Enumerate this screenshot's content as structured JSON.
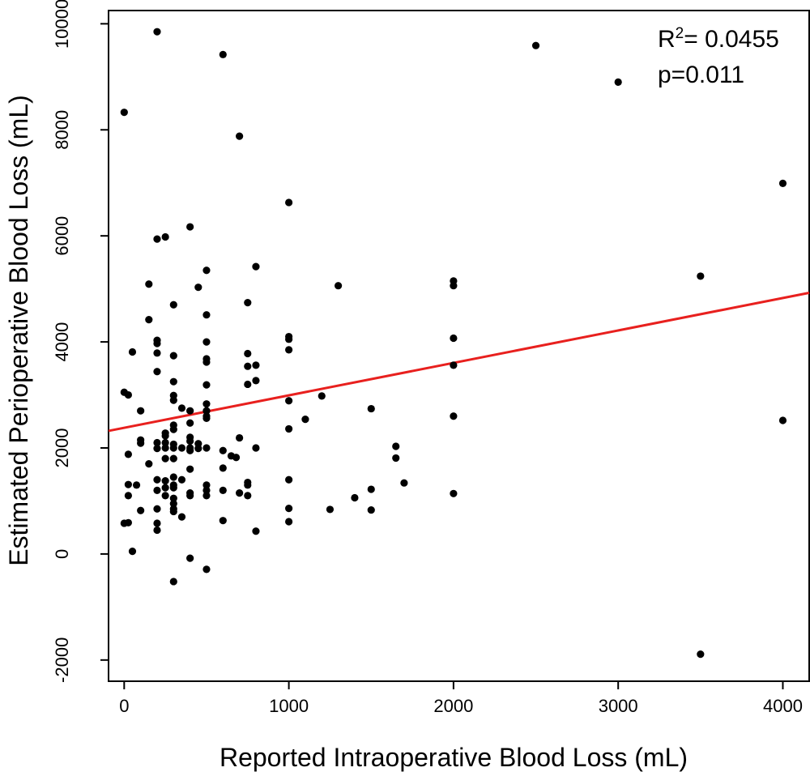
{
  "chart_data": {
    "type": "scatter",
    "xlabel": "Reported Intraoperative Blood Loss (mL)",
    "ylabel": "Estimated Perioperative Blood Loss (mL)",
    "xlim": [
      -95,
      4160
    ],
    "ylim": [
      -2400,
      10250
    ],
    "xticks": [
      0,
      1000,
      2000,
      3000,
      4000
    ],
    "xtick_labels": [
      "0",
      "1000",
      "2000",
      "3000",
      "4000"
    ],
    "yticks": [
      -2000,
      0,
      2000,
      4000,
      6000,
      8000,
      10000
    ],
    "ytick_labels": [
      "-2000",
      "0",
      "2000",
      "4000",
      "6000",
      "8000",
      "10000"
    ],
    "grid": false,
    "stats": {
      "r2_prefix": "R",
      "r2_sup": "2",
      "r2_value": "= 0.0455",
      "p_text": "p=0.011"
    },
    "regression": {
      "slope": 0.612,
      "intercept": 2380,
      "color": "#e8201e"
    },
    "point_color": "#000000",
    "points": [
      [
        0,
        8330
      ],
      [
        200,
        9850
      ],
      [
        600,
        9420
      ],
      [
        700,
        7880
      ],
      [
        2500,
        9590
      ],
      [
        3000,
        8900
      ],
      [
        4000,
        6990
      ],
      [
        1000,
        6630
      ],
      [
        200,
        5940
      ],
      [
        250,
        5980
      ],
      [
        400,
        6170
      ],
      [
        150,
        5090
      ],
      [
        500,
        5350
      ],
      [
        450,
        5030
      ],
      [
        800,
        5420
      ],
      [
        1300,
        5060
      ],
      [
        2000,
        5150
      ],
      [
        2000,
        5060
      ],
      [
        3500,
        5240
      ],
      [
        300,
        4700
      ],
      [
        750,
        4740
      ],
      [
        500,
        4510
      ],
      [
        150,
        4420
      ],
      [
        1000,
        4100
      ],
      [
        1000,
        4050
      ],
      [
        2000,
        4070
      ],
      [
        200,
        4030
      ],
      [
        200,
        3970
      ],
      [
        500,
        4000
      ],
      [
        50,
        3810
      ],
      [
        200,
        3790
      ],
      [
        300,
        3740
      ],
      [
        750,
        3780
      ],
      [
        1000,
        3850
      ],
      [
        500,
        3680
      ],
      [
        500,
        3620
      ],
      [
        750,
        3540
      ],
      [
        800,
        3560
      ],
      [
        2000,
        3560
      ],
      [
        200,
        3440
      ],
      [
        300,
        3250
      ],
      [
        500,
        3190
      ],
      [
        750,
        3200
      ],
      [
        800,
        3270
      ],
      [
        0,
        3050
      ],
      [
        25,
        3000
      ],
      [
        300,
        2990
      ],
      [
        300,
        2900
      ],
      [
        500,
        2830
      ],
      [
        1000,
        2890
      ],
      [
        1200,
        2980
      ],
      [
        1500,
        2740
      ],
      [
        350,
        2750
      ],
      [
        400,
        2700
      ],
      [
        500,
        2700
      ],
      [
        500,
        2600
      ],
      [
        100,
        2700
      ],
      [
        500,
        2560
      ],
      [
        1100,
        2540
      ],
      [
        2000,
        2600
      ],
      [
        4000,
        2520
      ],
      [
        300,
        2430
      ],
      [
        400,
        2470
      ],
      [
        250,
        2280
      ],
      [
        250,
        2230
      ],
      [
        400,
        2200
      ],
      [
        400,
        2130
      ],
      [
        300,
        2350
      ],
      [
        1000,
        2360
      ],
      [
        700,
        2190
      ],
      [
        100,
        2150
      ],
      [
        100,
        2090
      ],
      [
        200,
        2100
      ],
      [
        250,
        2100
      ],
      [
        300,
        2070
      ],
      [
        350,
        2000
      ],
      [
        400,
        2000
      ],
      [
        450,
        2080
      ],
      [
        500,
        2000
      ],
      [
        800,
        2000
      ],
      [
        1650,
        2030
      ],
      [
        200,
        1990
      ],
      [
        250,
        2000
      ],
      [
        300,
        2000
      ],
      [
        400,
        1950
      ],
      [
        450,
        1990
      ],
      [
        600,
        1950
      ],
      [
        250,
        1800
      ],
      [
        300,
        1800
      ],
      [
        650,
        1850
      ],
      [
        680,
        1820
      ],
      [
        25,
        1880
      ],
      [
        150,
        1700
      ],
      [
        400,
        1600
      ],
      [
        600,
        1620
      ],
      [
        1650,
        1810
      ],
      [
        200,
        1400
      ],
      [
        250,
        1380
      ],
      [
        300,
        1450
      ],
      [
        350,
        1400
      ],
      [
        500,
        1300
      ],
      [
        750,
        1350
      ],
      [
        750,
        1300
      ],
      [
        1000,
        1400
      ],
      [
        1700,
        1340
      ],
      [
        25,
        1310
      ],
      [
        75,
        1300
      ],
      [
        300,
        1300
      ],
      [
        300,
        1250
      ],
      [
        200,
        1200
      ],
      [
        250,
        1250
      ],
      [
        400,
        1150
      ],
      [
        400,
        1100
      ],
      [
        500,
        1200
      ],
      [
        500,
        1100
      ],
      [
        600,
        1200
      ],
      [
        700,
        1150
      ],
      [
        750,
        1100
      ],
      [
        1500,
        1220
      ],
      [
        2000,
        1140
      ],
      [
        25,
        1100
      ],
      [
        250,
        1100
      ],
      [
        300,
        1050
      ],
      [
        300,
        950
      ],
      [
        300,
        850
      ],
      [
        300,
        800
      ],
      [
        200,
        850
      ],
      [
        100,
        820
      ],
      [
        350,
        700
      ],
      [
        1000,
        860
      ],
      [
        1250,
        840
      ],
      [
        1400,
        1060
      ],
      [
        1500,
        830
      ],
      [
        0,
        580
      ],
      [
        25,
        590
      ],
      [
        200,
        580
      ],
      [
        200,
        450
      ],
      [
        600,
        630
      ],
      [
        800,
        430
      ],
      [
        1000,
        610
      ],
      [
        50,
        50
      ],
      [
        400,
        -80
      ],
      [
        300,
        -520
      ],
      [
        500,
        -290
      ],
      [
        3500,
        -1890
      ]
    ]
  }
}
